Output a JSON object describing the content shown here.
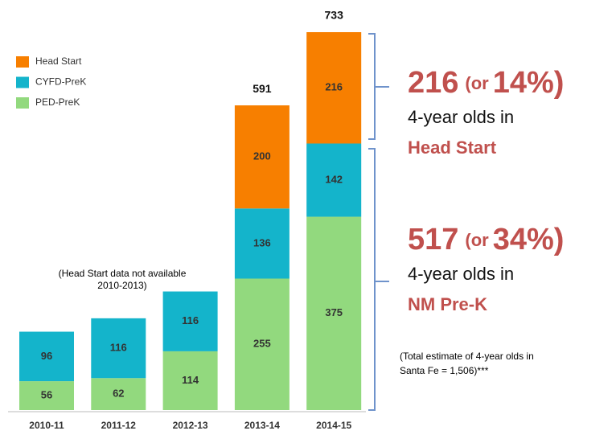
{
  "chart_data": {
    "type": "stacked_bar",
    "categories": [
      "2010-11",
      "2011-12",
      "2012-13",
      "2013-14",
      "2014-15"
    ],
    "series": [
      {
        "name": "PED-PreK",
        "color": "#92d97e",
        "values": [
          56,
          62,
          114,
          255,
          375
        ]
      },
      {
        "name": "CYFD-PreK",
        "color": "#14b4cb",
        "values": [
          96,
          116,
          116,
          136,
          142
        ]
      },
      {
        "name": "Head Start",
        "color": "#f77f00",
        "values": [
          null,
          null,
          null,
          200,
          216
        ]
      }
    ],
    "totals": [
      null,
      null,
      null,
      591,
      733
    ],
    "note": [
      "(Head Start data not available",
      "2010-2013)"
    ],
    "annotations": [
      {
        "number": "216",
        "or": "(or",
        "percent": "14%)",
        "line1": "4-year olds in",
        "line2": "Head Start"
      },
      {
        "number": "517",
        "or": "(or",
        "percent": "34%)",
        "line1": "4-year olds in",
        "line2": "NM Pre-K"
      }
    ],
    "footnote": [
      "(Total estimate of 4-year olds in",
      "Santa Fe = 1,506)***"
    ]
  }
}
